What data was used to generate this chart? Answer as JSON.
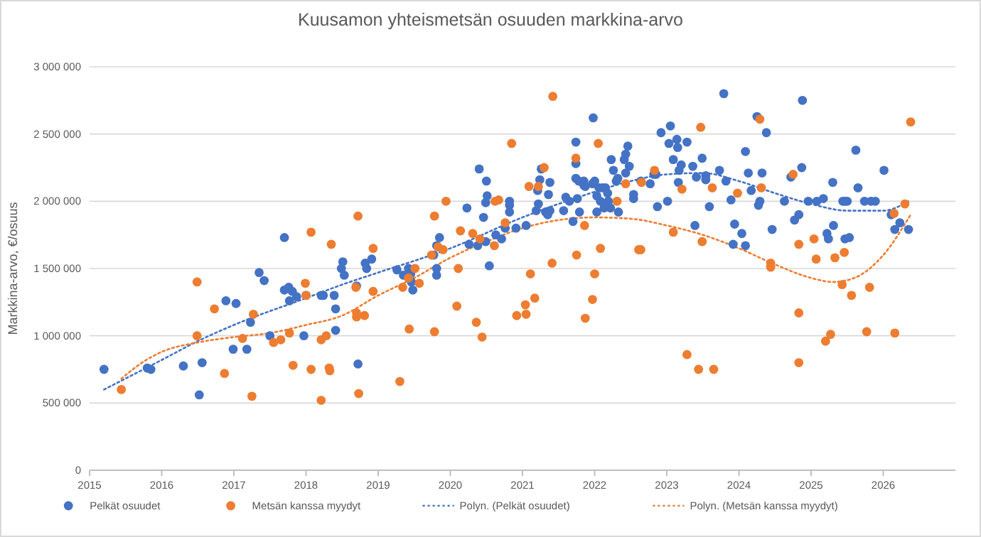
{
  "chart_data": {
    "type": "scatter",
    "title": "Kuusamon yhteismetsän osuuden markkina-arvo",
    "ylabel": "Markkina-arvo, €/osuus",
    "xlim": [
      2015,
      2027
    ],
    "xticks": [
      2015,
      2016,
      2017,
      2018,
      2019,
      2020,
      2021,
      2022,
      2023,
      2024,
      2025,
      2026
    ],
    "ylim": [
      0,
      3000000
    ],
    "yticks": [
      {
        "value": 0,
        "label": "0"
      },
      {
        "value": 500000,
        "label": "500 000"
      },
      {
        "value": 1000000,
        "label": "1 000 000"
      },
      {
        "value": 1500000,
        "label": "1 500 000"
      },
      {
        "value": 2000000,
        "label": "2 000 000"
      },
      {
        "value": 2500000,
        "label": "2 500 000"
      },
      {
        "value": 3000000,
        "label": "3 000 000"
      }
    ],
    "grid": "y",
    "legend": "bottom",
    "series": [
      {
        "name": "Pelkät osuudet",
        "marker": "circle",
        "color": "#4472c4",
        "x": [
          2015.2,
          2015.8,
          2015.85,
          2016.3,
          2016.52,
          2016.56,
          2016.89,
          2016.99,
          2017.03,
          2017.18,
          2017.23,
          2017.35,
          2017.42,
          2017.5,
          2017.7,
          2017.7,
          2017.76,
          2017.77,
          2017.81,
          2017.87,
          2017.97,
          2018.0,
          2018.21,
          2018.24,
          2018.39,
          2018.41,
          2018.41,
          2018.51,
          2018.49,
          2018.53,
          2018.72,
          2018.7,
          2018.82,
          2018.84,
          2018.91,
          2019.26,
          2019.35,
          2019.42,
          2019.45,
          2019.46,
          2019.48,
          2019.77,
          2019.81,
          2019.81,
          2019.81,
          2019.85,
          2020.23,
          2020.26,
          2020.38,
          2020.4,
          2020.46,
          2020.49,
          2020.5,
          2020.51,
          2020.54,
          2020.49,
          2020.63,
          2020.71,
          2020.76,
          2020.82,
          2020.82,
          2020.82,
          2020.91,
          2021.05,
          2021.19,
          2021.21,
          2021.22,
          2021.24,
          2021.26,
          2021.32,
          2021.35,
          2021.38,
          2021.36,
          2021.38,
          2021.57,
          2021.6,
          2021.65,
          2021.7,
          2021.74,
          2021.74,
          2021.74,
          2021.76,
          2021.79,
          2021.78,
          2021.85,
          2021.85,
          2021.87,
          2021.98,
          2022.0,
          2021.97,
          2022.03,
          2022.06,
          2022.08,
          2022.03,
          2022.11,
          2022.15,
          2022.13,
          2022.22,
          2022.19,
          2022.18,
          2022.23,
          2022.26,
          2022.3,
          2022.32,
          2022.33,
          2022.41,
          2022.43,
          2022.46,
          2022.43,
          2022.48,
          2022.54,
          2022.54,
          2022.64,
          2022.77,
          2022.82,
          2022.85,
          2022.87,
          2022.92,
          2023.01,
          2023.03,
          2023.05,
          2023.09,
          2023.14,
          2023.15,
          2023.16,
          2023.17,
          2023.2,
          2023.28,
          2023.36,
          2023.39,
          2023.41,
          2023.49,
          2023.54,
          2023.54,
          2023.59,
          2023.73,
          2023.79,
          2023.82,
          2023.89,
          2023.94,
          2023.92,
          2024.04,
          2024.09,
          2024.09,
          2024.13,
          2024.17,
          2024.25,
          2024.27,
          2024.29,
          2024.32,
          2024.38,
          2024.46,
          2024.63,
          2024.72,
          2024.77,
          2024.83,
          2024.87,
          2024.88,
          2024.96,
          2025.08,
          2025.17,
          2025.22,
          2025.24,
          2025.3,
          2025.31,
          2025.44,
          2025.47,
          2025.5,
          2025.47,
          2025.53,
          2025.62,
          2025.65,
          2025.74,
          2025.83,
          2025.89,
          2026.01,
          2026.11,
          2026.16,
          2026.23,
          2026.35
        ],
        "values": [
          750000,
          760000,
          750000,
          775000,
          560000,
          800000,
          1260000,
          900000,
          1240000,
          900000,
          1100000,
          1470000,
          1410000,
          1000000,
          1730000,
          1340000,
          1360000,
          1260000,
          1330000,
          1290000,
          1000000,
          1300000,
          1300000,
          1300000,
          1300000,
          1200000,
          1040000,
          1550000,
          1500000,
          1450000,
          790000,
          1370000,
          1540000,
          1500000,
          1570000,
          1490000,
          1450000,
          1500000,
          1460000,
          1400000,
          1340000,
          1600000,
          1500000,
          1450000,
          1670000,
          1730000,
          1950000,
          1680000,
          1670000,
          2240000,
          1880000,
          1700000,
          2150000,
          2040000,
          1520000,
          1990000,
          1750000,
          1720000,
          1800000,
          2000000,
          1970000,
          1920000,
          1800000,
          1820000,
          1930000,
          2080000,
          1980000,
          2160000,
          2240000,
          1920000,
          1900000,
          1930000,
          2050000,
          2140000,
          1930000,
          2030000,
          2000000,
          1850000,
          2440000,
          2280000,
          2170000,
          2020000,
          1920000,
          2150000,
          2150000,
          2120000,
          2110000,
          2620000,
          2150000,
          2130000,
          2040000,
          2100000,
          2000000,
          1920000,
          2100000,
          2100000,
          1950000,
          1950000,
          2000000,
          2060000,
          2310000,
          2230000,
          2150000,
          2170000,
          1920000,
          2310000,
          2350000,
          2410000,
          2210000,
          2260000,
          2050000,
          2020000,
          2150000,
          2130000,
          2200000,
          2200000,
          1960000,
          2510000,
          2000000,
          2430000,
          2560000,
          2310000,
          2460000,
          2400000,
          2140000,
          2230000,
          2270000,
          2440000,
          2260000,
          1820000,
          2180000,
          2320000,
          2190000,
          2160000,
          1960000,
          2230000,
          2800000,
          2150000,
          2010000,
          1830000,
          1680000,
          1760000,
          2370000,
          1670000,
          2210000,
          2080000,
          2630000,
          1970000,
          2000000,
          2210000,
          2510000,
          1790000,
          2000000,
          2180000,
          1860000,
          1900000,
          2250000,
          2750000,
          2000000,
          2000000,
          2020000,
          1760000,
          1720000,
          2140000,
          1820000,
          2000000,
          2000000,
          2000000,
          1720000,
          1730000,
          2380000,
          2100000,
          2000000,
          2000000,
          2000000,
          2230000,
          1900000,
          1790000,
          1840000,
          1790000
        ]
      },
      {
        "name": "Metsän kanssa myydyt",
        "marker": "circle",
        "color": "#ed7d31",
        "x": [
          2015.44,
          2016.49,
          2016.49,
          2016.73,
          2016.87,
          2017.12,
          2017.25,
          2017.27,
          2017.55,
          2017.65,
          2017.77,
          2017.82,
          2017.99,
          2018.0,
          2018.07,
          2018.07,
          2018.21,
          2018.21,
          2018.28,
          2018.35,
          2018.32,
          2018.33,
          2018.69,
          2018.72,
          2018.73,
          2018.7,
          2018.7,
          2018.81,
          2018.93,
          2018.93,
          2019.3,
          2019.34,
          2019.42,
          2019.43,
          2019.51,
          2019.57,
          2019.74,
          2019.78,
          2019.78,
          2019.83,
          2019.9,
          2019.94,
          2020.09,
          2020.11,
          2020.14,
          2020.31,
          2020.36,
          2020.41,
          2020.44,
          2020.61,
          2020.62,
          2020.67,
          2020.76,
          2020.85,
          2020.92,
          2021.04,
          2021.05,
          2021.11,
          2021.09,
          2021.17,
          2021.22,
          2021.3,
          2021.41,
          2021.42,
          2021.74,
          2021.75,
          2021.86,
          2021.87,
          2021.97,
          2022.0,
          2022.05,
          2022.08,
          2022.31,
          2022.43,
          2022.61,
          2022.64,
          2022.65,
          2022.83,
          2023.09,
          2023.21,
          2023.28,
          2023.44,
          2023.47,
          2023.49,
          2023.63,
          2023.65,
          2023.98,
          2024.29,
          2024.31,
          2024.44,
          2024.44,
          2024.75,
          2024.83,
          2024.83,
          2024.83,
          2025.04,
          2025.07,
          2025.2,
          2025.27,
          2025.33,
          2025.43,
          2025.46,
          2025.56,
          2025.77,
          2025.81,
          2026.15,
          2026.16,
          2026.3,
          2026.38
        ],
        "values": [
          600000,
          1400000,
          1000000,
          1200000,
          720000,
          980000,
          550000,
          1160000,
          950000,
          970000,
          1020000,
          780000,
          1390000,
          1300000,
          1770000,
          750000,
          970000,
          520000,
          1000000,
          1680000,
          760000,
          740000,
          1360000,
          1890000,
          570000,
          1170000,
          1140000,
          1150000,
          1650000,
          1330000,
          660000,
          1360000,
          1430000,
          1050000,
          1500000,
          1390000,
          1600000,
          1890000,
          1030000,
          1660000,
          1640000,
          2000000,
          1220000,
          1500000,
          1780000,
          1760000,
          1100000,
          1720000,
          990000,
          1670000,
          2000000,
          2010000,
          1840000,
          2430000,
          1150000,
          1230000,
          1160000,
          1460000,
          2110000,
          1280000,
          2110000,
          2250000,
          1540000,
          2780000,
          2320000,
          1600000,
          1820000,
          1130000,
          1270000,
          1460000,
          2430000,
          1650000,
          2000000,
          2130000,
          1640000,
          1640000,
          2140000,
          2230000,
          1770000,
          2090000,
          860000,
          750000,
          2550000,
          1700000,
          2100000,
          750000,
          2060000,
          2610000,
          2100000,
          1540000,
          1510000,
          2200000,
          1680000,
          1170000,
          800000,
          1720000,
          1570000,
          960000,
          1010000,
          1580000,
          1380000,
          1620000,
          1300000,
          1030000,
          1360000,
          1910000,
          1020000,
          1980000,
          2590000
        ]
      },
      {
        "name": "Polyn. (Pelkät osuudet)",
        "type": "line",
        "line_style": "dotted",
        "color": "#4472c4",
        "x": [
          2015.2,
          2016,
          2016.5,
          2017,
          2018,
          2018.5,
          2019,
          2020,
          2021,
          2022,
          2022.5,
          2023,
          2023.5,
          2024,
          2024.5,
          2025,
          2025.5,
          2026,
          2026.35
        ],
        "values": [
          600000,
          820000,
          960000,
          1080000,
          1280000,
          1380000,
          1470000,
          1650000,
          1880000,
          2070000,
          2150000,
          2200000,
          2210000,
          2150000,
          2060000,
          1980000,
          1930000,
          1930000,
          2000000
        ]
      },
      {
        "name": "Polyn. (Metsän kanssa myydyt)",
        "type": "line",
        "line_style": "dotted",
        "color": "#ed7d31",
        "x": [
          2015.44,
          2015.7,
          2016,
          2016.5,
          2017,
          2017.5,
          2018,
          2018.5,
          2019,
          2019.5,
          2020,
          2020.5,
          2021,
          2021.5,
          2022,
          2022.5,
          2023,
          2023.5,
          2024,
          2024.5,
          2025,
          2025.3,
          2025.6,
          2026,
          2026.38
        ],
        "values": [
          680000,
          790000,
          880000,
          950000,
          990000,
          1020000,
          1080000,
          1150000,
          1300000,
          1430000,
          1580000,
          1700000,
          1800000,
          1860000,
          1880000,
          1870000,
          1820000,
          1750000,
          1650000,
          1530000,
          1430000,
          1400000,
          1430000,
          1600000,
          1900000
        ]
      }
    ]
  }
}
